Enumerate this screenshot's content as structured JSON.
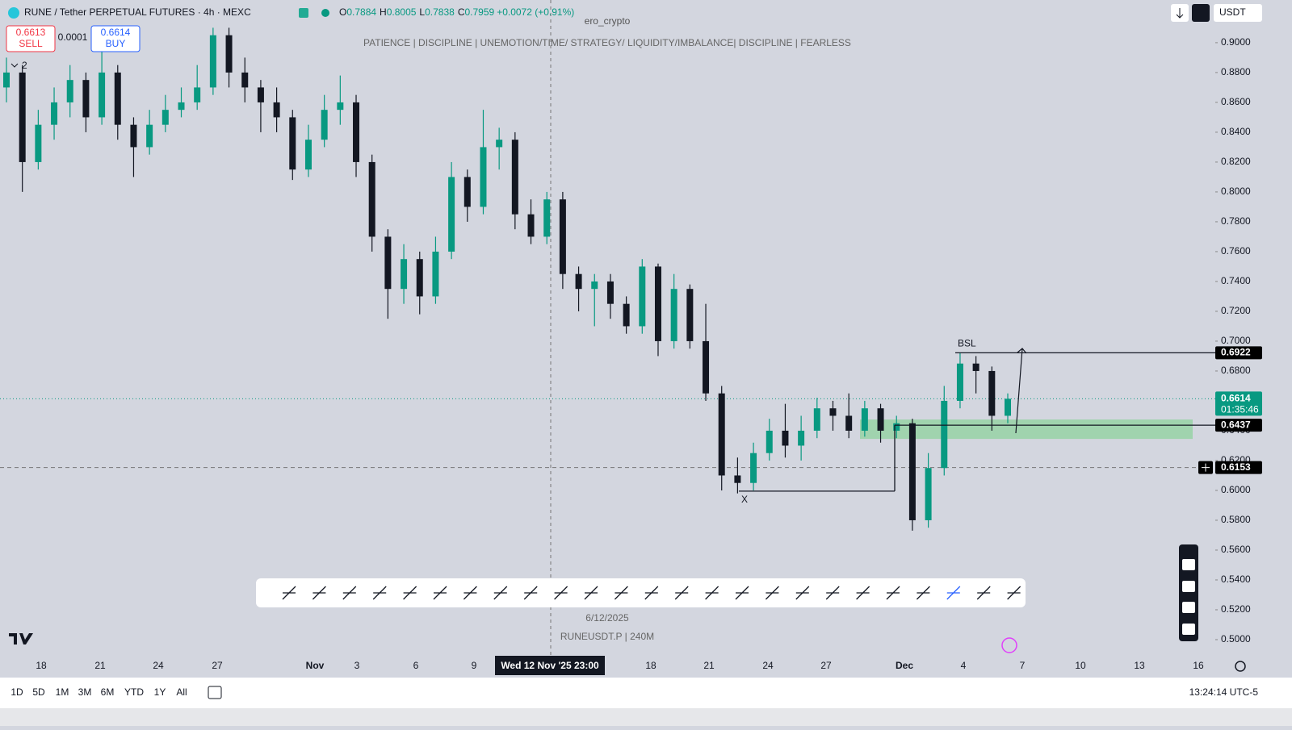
{
  "header": {
    "symbol": "RUNE / Tether PERPETUAL FUTURES · 4h · MEXC",
    "ohlc": [
      {
        "key": "O",
        "value": 0.7884
      },
      {
        "key": "H",
        "value": 0.8005
      },
      {
        "key": "L",
        "value": 0.7838
      },
      {
        "key": "C",
        "value": 0.7959
      }
    ],
    "change": "+0.0072 (+0.91%)"
  },
  "trade": {
    "sell_price": 0.6613,
    "sell": "SELL",
    "spread": 0.0001,
    "buy_price": 0.6614,
    "buy": "BUY"
  },
  "indicator_count": 2,
  "watermark": {
    "name": "ero_crypto",
    "motto": "PATIENCE   |   DISCIPLINE   |   UNEMOTION/TIME/ STRATEGY/ LIQUIDITY/IMBALANCE|   DISCIPLINE   |   FEARLESS"
  },
  "footer_note": {
    "date": "6/12/2025",
    "symbol": "RUNEUSDT.P  |  240M"
  },
  "currency": "USDT",
  "timeframes": [
    "1D",
    "5D",
    "1M",
    "3M",
    "6M",
    "YTD",
    "1Y",
    "All"
  ],
  "clock": "13:24:14 UTC-5",
  "chart_data": {
    "type": "candlestick",
    "up_color": "#089981",
    "down_color": "#131722",
    "candles": [
      [
        0.87,
        0.89,
        0.86,
        0.88
      ],
      [
        0.88,
        0.885,
        0.8,
        0.82
      ],
      [
        0.82,
        0.855,
        0.815,
        0.845
      ],
      [
        0.845,
        0.87,
        0.835,
        0.86
      ],
      [
        0.86,
        0.885,
        0.85,
        0.875
      ],
      [
        0.875,
        0.88,
        0.84,
        0.85
      ],
      [
        0.85,
        0.895,
        0.845,
        0.88
      ],
      [
        0.88,
        0.885,
        0.835,
        0.845
      ],
      [
        0.845,
        0.85,
        0.81,
        0.83
      ],
      [
        0.83,
        0.855,
        0.825,
        0.845
      ],
      [
        0.845,
        0.865,
        0.84,
        0.855
      ],
      [
        0.855,
        0.87,
        0.85,
        0.86
      ],
      [
        0.86,
        0.885,
        0.855,
        0.87
      ],
      [
        0.87,
        0.91,
        0.865,
        0.905
      ],
      [
        0.905,
        0.91,
        0.87,
        0.88
      ],
      [
        0.88,
        0.89,
        0.86,
        0.87
      ],
      [
        0.87,
        0.875,
        0.84,
        0.86
      ],
      [
        0.86,
        0.87,
        0.84,
        0.85
      ],
      [
        0.85,
        0.855,
        0.808,
        0.815
      ],
      [
        0.815,
        0.845,
        0.81,
        0.835
      ],
      [
        0.835,
        0.865,
        0.83,
        0.855
      ],
      [
        0.855,
        0.878,
        0.845,
        0.86
      ],
      [
        0.86,
        0.865,
        0.81,
        0.82
      ],
      [
        0.82,
        0.825,
        0.76,
        0.77
      ],
      [
        0.77,
        0.775,
        0.715,
        0.735
      ],
      [
        0.735,
        0.765,
        0.725,
        0.755
      ],
      [
        0.755,
        0.76,
        0.718,
        0.73
      ],
      [
        0.73,
        0.77,
        0.725,
        0.76
      ],
      [
        0.76,
        0.82,
        0.755,
        0.81
      ],
      [
        0.81,
        0.815,
        0.78,
        0.79
      ],
      [
        0.79,
        0.855,
        0.785,
        0.83
      ],
      [
        0.83,
        0.843,
        0.815,
        0.835
      ],
      [
        0.835,
        0.84,
        0.775,
        0.785
      ],
      [
        0.785,
        0.795,
        0.765,
        0.77
      ],
      [
        0.77,
        0.8,
        0.765,
        0.795
      ],
      [
        0.795,
        0.8,
        0.735,
        0.745
      ],
      [
        0.745,
        0.75,
        0.72,
        0.735
      ],
      [
        0.735,
        0.745,
        0.71,
        0.74
      ],
      [
        0.74,
        0.745,
        0.715,
        0.725
      ],
      [
        0.725,
        0.73,
        0.705,
        0.71
      ],
      [
        0.71,
        0.755,
        0.705,
        0.75
      ],
      [
        0.75,
        0.752,
        0.69,
        0.7
      ],
      [
        0.7,
        0.745,
        0.695,
        0.735
      ],
      [
        0.735,
        0.738,
        0.695,
        0.7
      ],
      [
        0.7,
        0.725,
        0.66,
        0.665
      ],
      [
        0.665,
        0.67,
        0.6,
        0.61
      ],
      [
        0.61,
        0.622,
        0.598,
        0.605
      ],
      [
        0.605,
        0.632,
        0.6,
        0.625
      ],
      [
        0.625,
        0.648,
        0.62,
        0.64
      ],
      [
        0.64,
        0.658,
        0.622,
        0.63
      ],
      [
        0.63,
        0.65,
        0.62,
        0.64
      ],
      [
        0.64,
        0.662,
        0.635,
        0.655
      ],
      [
        0.655,
        0.66,
        0.64,
        0.65
      ],
      [
        0.65,
        0.665,
        0.635,
        0.64
      ],
      [
        0.64,
        0.66,
        0.636,
        0.655
      ],
      [
        0.655,
        0.658,
        0.632,
        0.64
      ],
      [
        0.64,
        0.65,
        0.635,
        0.645
      ],
      [
        0.645,
        0.648,
        0.573,
        0.58
      ],
      [
        0.58,
        0.625,
        0.575,
        0.615
      ],
      [
        0.615,
        0.67,
        0.61,
        0.66
      ],
      [
        0.66,
        0.692,
        0.655,
        0.685
      ],
      [
        0.685,
        0.69,
        0.665,
        0.68
      ],
      [
        0.68,
        0.683,
        0.64,
        0.65
      ],
      [
        0.65,
        0.665,
        0.645,
        0.6614
      ]
    ],
    "ylim": [
      0.4908,
      0.9286
    ],
    "yticks": [
      {
        "value": 0.9,
        "label": "0.9000"
      },
      {
        "value": 0.88,
        "label": "0.8800"
      },
      {
        "value": 0.86,
        "label": "0.8600"
      },
      {
        "value": 0.84,
        "label": "0.8400"
      },
      {
        "value": 0.82,
        "label": "0.8200"
      },
      {
        "value": 0.8,
        "label": "0.8000"
      },
      {
        "value": 0.78,
        "label": "0.7800"
      },
      {
        "value": 0.76,
        "label": "0.7600"
      },
      {
        "value": 0.74,
        "label": "0.7400"
      },
      {
        "value": 0.72,
        "label": "0.7200"
      },
      {
        "value": 0.7,
        "label": "0.7000"
      },
      {
        "value": 0.68,
        "label": "0.6800"
      },
      {
        "value": 0.66,
        "label": "0.6600"
      },
      {
        "value": 0.64,
        "label": "0.6400"
      },
      {
        "value": 0.62,
        "label": "0.6200"
      },
      {
        "value": 0.6,
        "label": "0.6000"
      },
      {
        "value": 0.58,
        "label": "0.5800"
      },
      {
        "value": 0.56,
        "label": "0.5600"
      },
      {
        "value": 0.54,
        "label": "0.5400"
      },
      {
        "value": 0.52,
        "label": "0.5200"
      },
      {
        "value": 0.5,
        "label": "0.5000"
      }
    ],
    "xticks": [
      "18",
      "21",
      "24",
      "27",
      "Nov",
      "3",
      "6",
      "9",
      "18",
      "21",
      "24",
      "27",
      "Dec",
      "4",
      "7",
      "10",
      "13",
      "16"
    ],
    "crosshair_label": "Wed 12 Nov '25  23:00",
    "last_price": {
      "value": 0.6614,
      "countdown": "01:35:46"
    },
    "price_levels": [
      0.6922,
      0.6437,
      0.6153
    ],
    "zone": [
      0.6345,
      0.6475
    ],
    "x_level": 0.5995,
    "annotations": [
      "BSL",
      "X"
    ]
  }
}
